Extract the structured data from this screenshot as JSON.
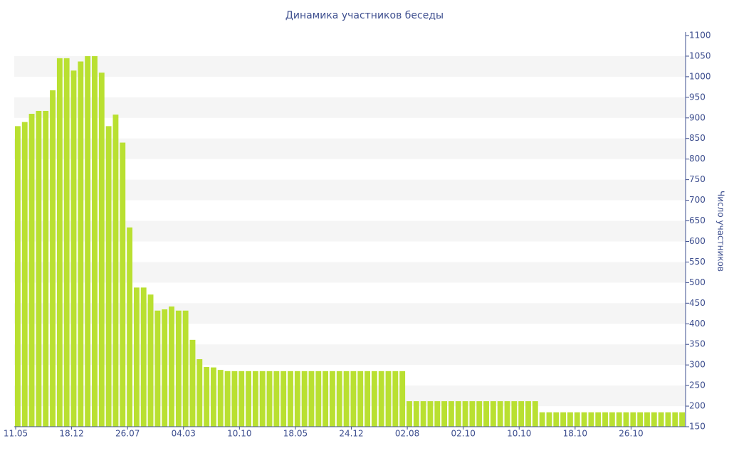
{
  "chart_data": {
    "type": "bar",
    "title": "Динамика участников беседы",
    "y_label": "Число участников",
    "categories": [
      "11.05",
      null,
      null,
      null,
      null,
      null,
      null,
      null,
      "18.12",
      null,
      null,
      null,
      null,
      null,
      null,
      null,
      "26.07",
      null,
      null,
      null,
      null,
      null,
      null,
      null,
      "04.03",
      null,
      null,
      null,
      null,
      null,
      null,
      null,
      "10.10",
      null,
      null,
      null,
      null,
      null,
      null,
      null,
      "18.05",
      null,
      null,
      null,
      null,
      null,
      null,
      null,
      "24.12",
      null,
      null,
      null,
      null,
      null,
      null,
      null,
      "02.08",
      null,
      null,
      null,
      null,
      null,
      null,
      null,
      "02.10",
      null,
      null,
      null,
      null,
      null,
      null,
      null,
      "10.10",
      null,
      null,
      null,
      null,
      null,
      null,
      null,
      "18.10",
      null,
      null,
      null,
      null,
      null,
      null,
      null,
      "26.10",
      null,
      null,
      null,
      null,
      null,
      null,
      null
    ],
    "values": [
      880,
      890,
      910,
      917,
      917,
      967,
      1045,
      1045,
      1015,
      1037,
      1050,
      1050,
      1010,
      880,
      908,
      840,
      634,
      488,
      488,
      471,
      432,
      435,
      442,
      432,
      432,
      361,
      314,
      295,
      294,
      288,
      285,
      285,
      285,
      285,
      285,
      285,
      285,
      285,
      285,
      285,
      285,
      285,
      285,
      285,
      285,
      285,
      285,
      285,
      285,
      285,
      285,
      285,
      285,
      285,
      285,
      285,
      212,
      212,
      212,
      212,
      212,
      212,
      212,
      212,
      212,
      212,
      212,
      212,
      212,
      212,
      212,
      212,
      212,
      212,
      212,
      185,
      185,
      185,
      185,
      185,
      185,
      185,
      185,
      185,
      185,
      185,
      185,
      185,
      185,
      185,
      185,
      185,
      185,
      185,
      185,
      185
    ],
    "color": "#b9e031",
    "ylim": [
      150,
      1100
    ],
    "yticks": [
      150,
      200,
      250,
      300,
      350,
      400,
      450,
      500,
      550,
      600,
      650,
      700,
      750,
      800,
      850,
      900,
      950,
      1000,
      1050,
      1100
    ],
    "grid": "bands",
    "y_axis_side": "right"
  }
}
